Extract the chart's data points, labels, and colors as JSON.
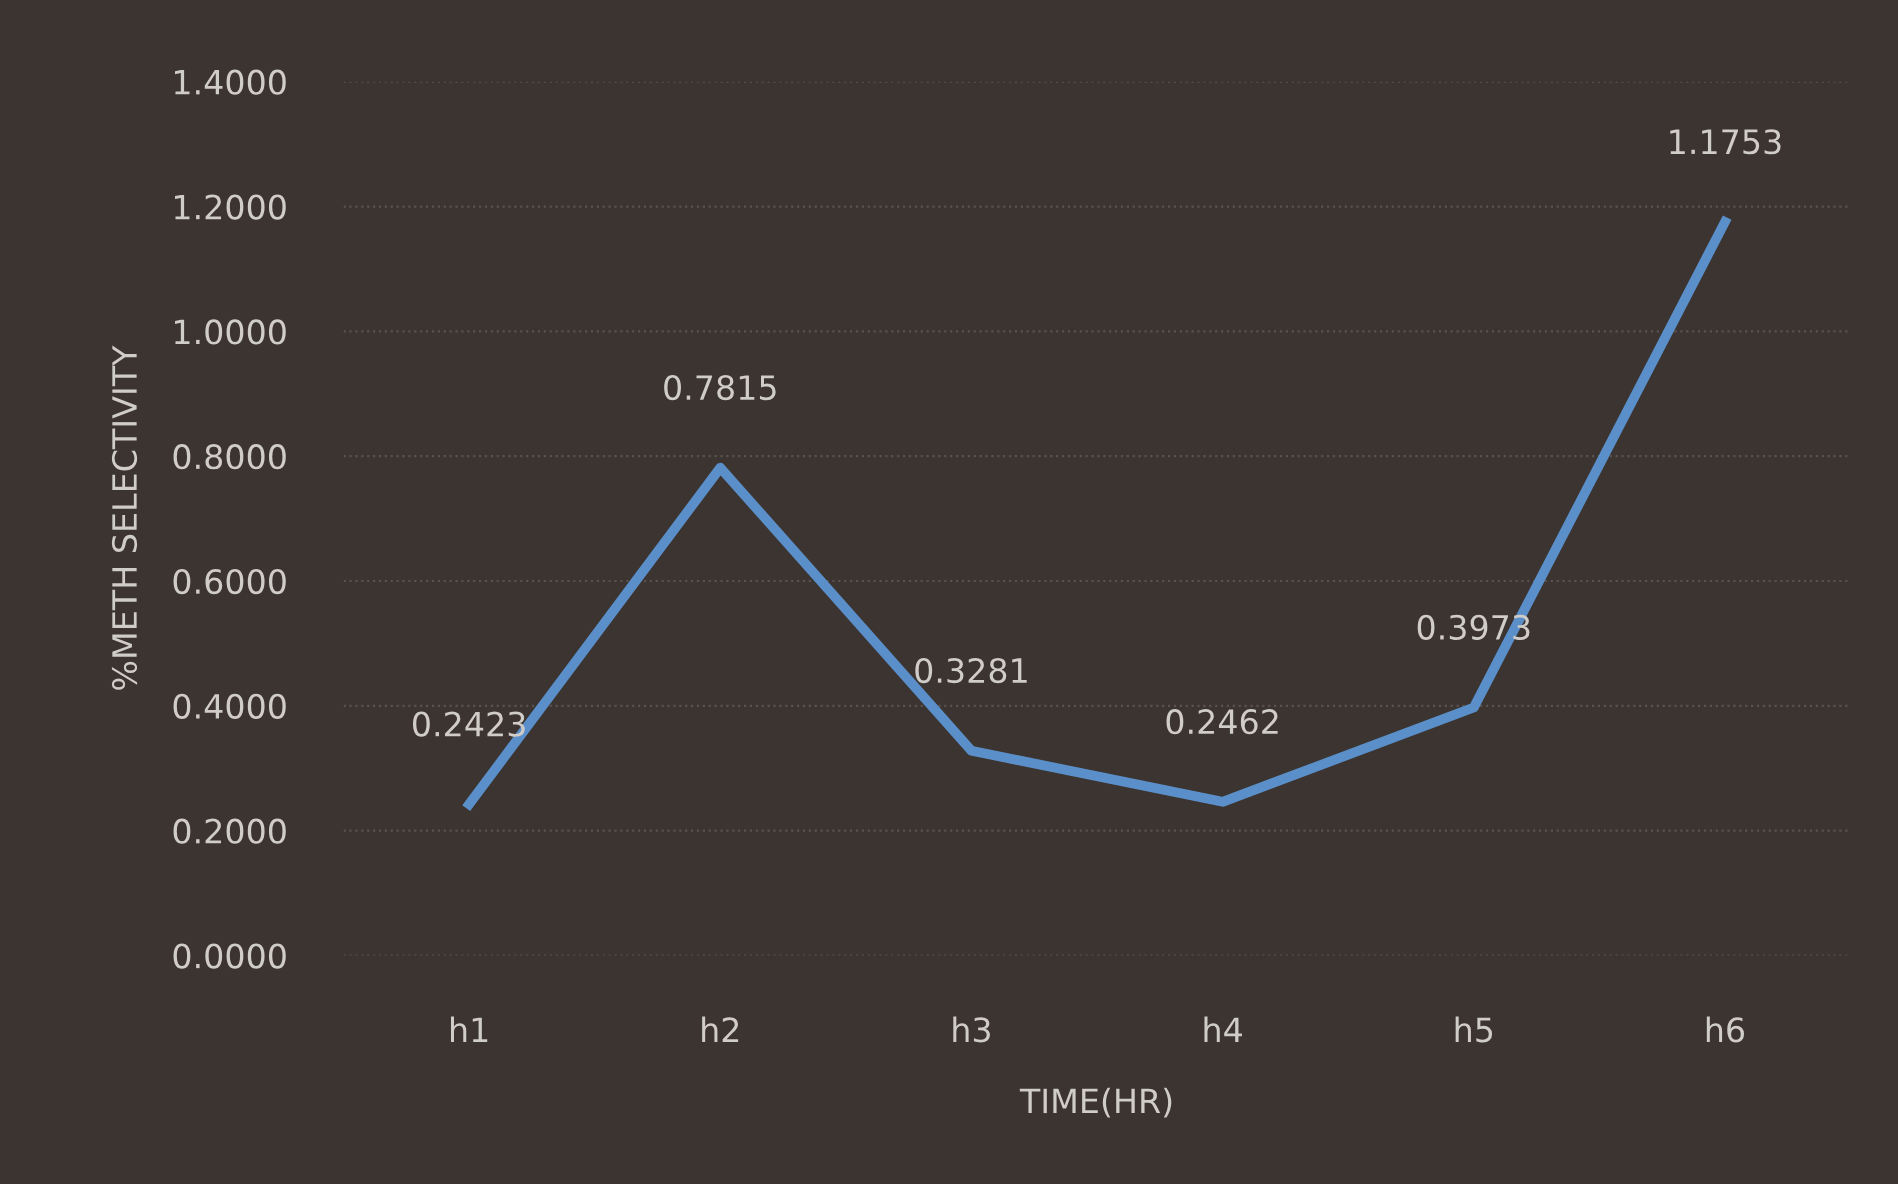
{
  "chart_data": {
    "type": "line",
    "xlabel": "TIME(HR)",
    "ylabel": "%METH SELECTIVITY",
    "categories": [
      "h1",
      "h2",
      "h3",
      "h4",
      "h5",
      "h6"
    ],
    "series": [
      {
        "color": "#5b8fc9",
        "values": [
          0.2423,
          0.7815,
          0.3281,
          0.2462,
          0.3973,
          1.1753
        ]
      }
    ],
    "ylim": [
      0,
      1.4
    ],
    "yticks": [
      {
        "value": 0,
        "label": "0.0000"
      },
      {
        "value": 0.2,
        "label": "0.2000"
      },
      {
        "value": 0.4,
        "label": "0.4000"
      },
      {
        "value": 0.6,
        "label": "0.6000"
      },
      {
        "value": 0.8,
        "label": "0.8000"
      },
      {
        "value": 1.0,
        "label": "1.0000"
      },
      {
        "value": 1.2,
        "label": "1.2000"
      },
      {
        "value": 1.4,
        "label": "1.4000"
      }
    ],
    "grid": "y",
    "data_labels": true,
    "marker": "none",
    "line_style": "solid"
  }
}
